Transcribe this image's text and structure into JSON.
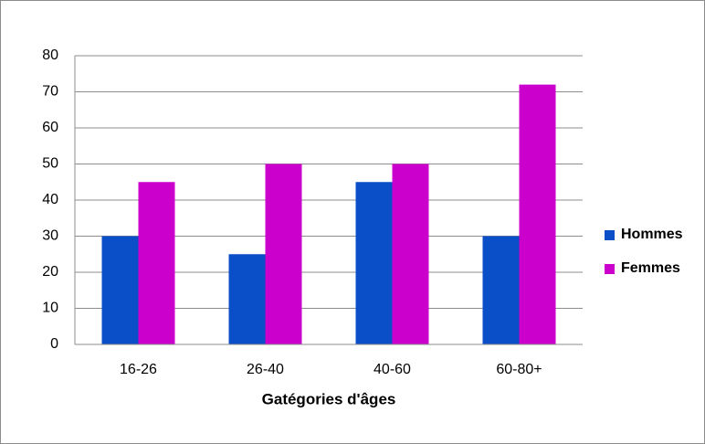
{
  "chart_data": {
    "type": "bar",
    "x_label": "Gatégories d'âges",
    "categories": [
      "16-26",
      "26-40",
      "40-60",
      "60-80+"
    ],
    "series": [
      {
        "name": "Hommes",
        "color": "#0a4ec8",
        "values": [
          30,
          25,
          45,
          30
        ]
      },
      {
        "name": "Femmes",
        "color": "#cc00cc",
        "values": [
          45,
          50,
          50,
          72
        ]
      }
    ],
    "ylim": [
      0,
      80
    ],
    "yticks": [
      0,
      10,
      20,
      30,
      40,
      50,
      60,
      70,
      80
    ],
    "grid": true,
    "legend": "right"
  }
}
